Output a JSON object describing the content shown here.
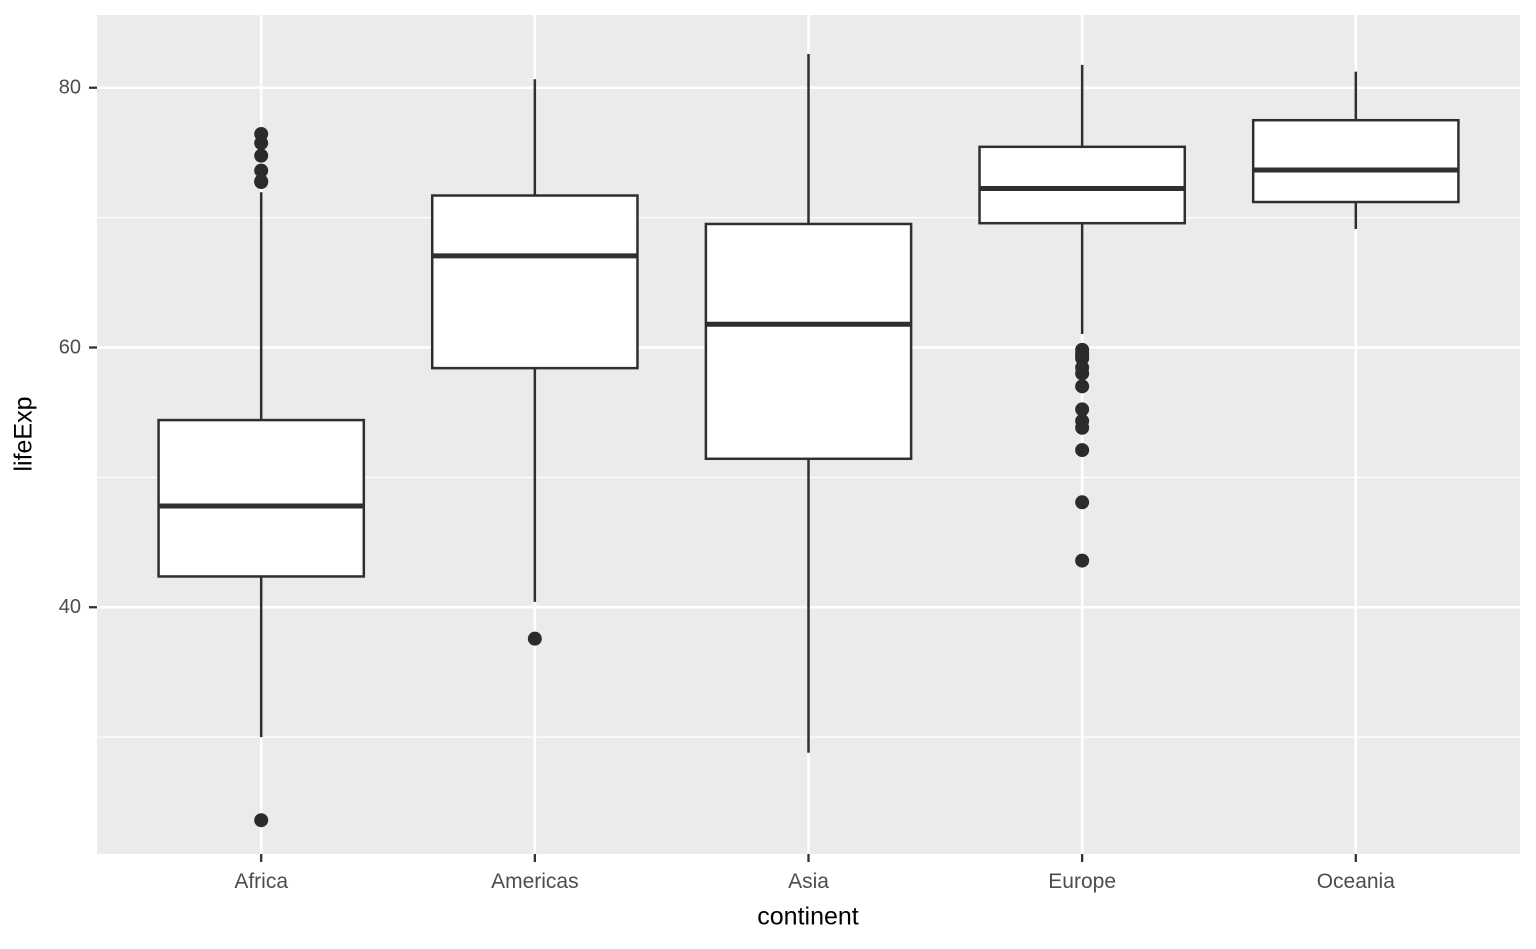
{
  "chart_data": {
    "type": "boxplot",
    "title": "",
    "xlabel": "continent",
    "ylabel": "lifeExp",
    "categories": [
      "Africa",
      "Americas",
      "Asia",
      "Europe",
      "Oceania"
    ],
    "y_breaks": [
      40,
      60,
      80
    ],
    "y_break_labels": [
      "40",
      "60",
      "80"
    ],
    "y_minor_breaks": [
      30,
      50,
      70
    ],
    "ylim": [
      21.0,
      85.6
    ],
    "grid": "on",
    "legend": "none",
    "series": [
      {
        "category": "Africa",
        "whisker_low": 30.0,
        "q1": 42.37,
        "median": 47.79,
        "q3": 54.41,
        "whisker_high": 71.95,
        "outliers": [
          23.6,
          72.74,
          72.8,
          73.62,
          74.77,
          75.74,
          76.44
        ]
      },
      {
        "category": "Americas",
        "whisker_low": 40.41,
        "q1": 58.41,
        "median": 67.05,
        "q3": 71.7,
        "whisker_high": 80.65,
        "outliers": [
          37.58
        ]
      },
      {
        "category": "Asia",
        "whisker_low": 28.8,
        "q1": 51.43,
        "median": 61.79,
        "q3": 69.51,
        "whisker_high": 82.6,
        "outliers": []
      },
      {
        "category": "Europe",
        "whisker_low": 61.04,
        "q1": 69.57,
        "median": 72.24,
        "q3": 75.45,
        "whisker_high": 81.76,
        "outliers": [
          43.59,
          48.08,
          52.1,
          53.82,
          54.34,
          55.23,
          57.01,
          58.0,
          58.45,
          59.16,
          59.28,
          59.51,
          59.82
        ]
      },
      {
        "category": "Oceania",
        "whisker_low": 69.12,
        "q1": 71.2,
        "median": 73.67,
        "q3": 77.5,
        "whisker_high": 81.24,
        "outliers": []
      }
    ],
    "style": {
      "panel_bg": "#EBEBEB",
      "grid_color": "#FFFFFF",
      "box_fill": "#FFFFFF",
      "box_stroke": "#2F2F2F",
      "outlier_color": "#2B2B2B",
      "tick_color": "#333333",
      "tick_label_color": "#4D4D4D",
      "axis_title_color": "#000000"
    }
  }
}
